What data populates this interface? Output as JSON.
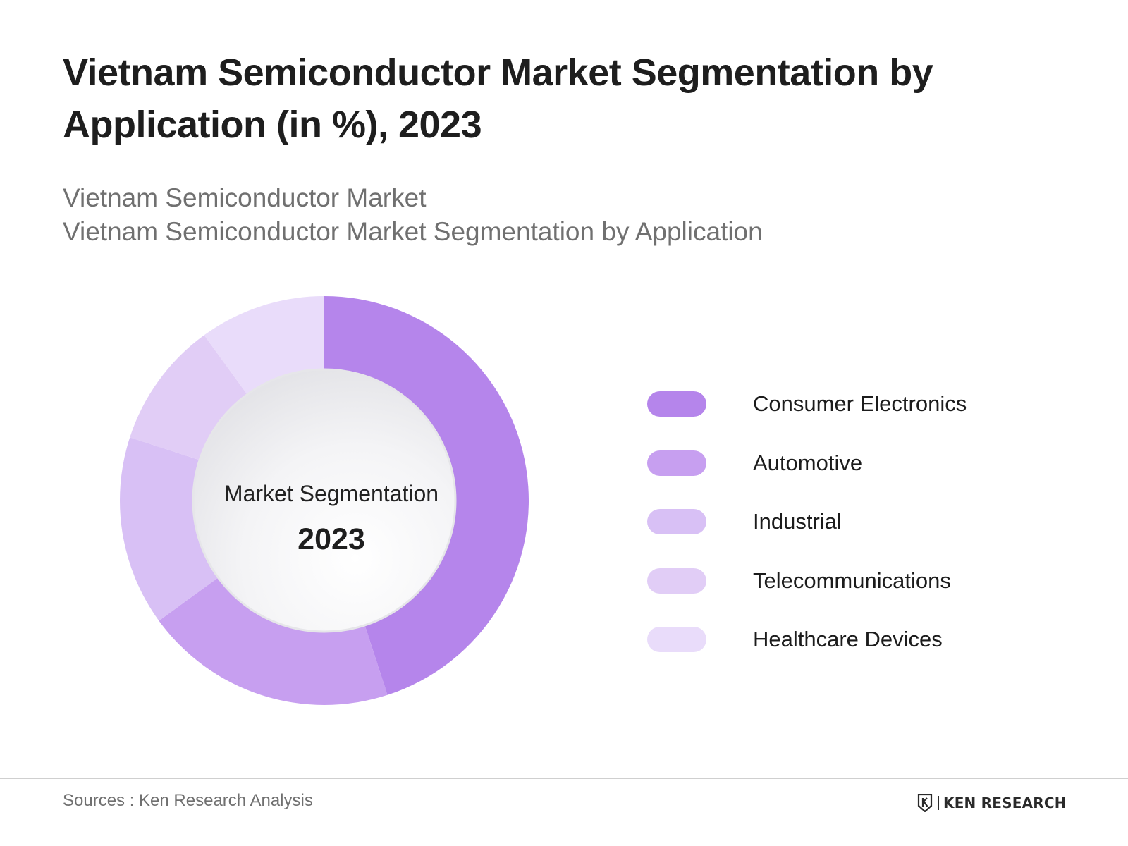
{
  "header": {
    "title": "Vietnam Semiconductor Market Segmentation by Application (in %), 2023",
    "subtitle_1": "Vietnam Semiconductor Market",
    "subtitle_2": "Vietnam Semiconductor Market Segmentation by Application"
  },
  "chart_data": {
    "type": "pie",
    "variant": "donut",
    "title": "Vietnam Semiconductor Market Segmentation by Application (in %), 2023",
    "center_label": "Market Segmentation",
    "center_value": "2023",
    "unit": "%",
    "categories": [
      "Consumer Electronics",
      "Automotive",
      "Industrial",
      "Telecommunications",
      "Healthcare Devices"
    ],
    "values": [
      45,
      20,
      15,
      10,
      10
    ],
    "colors": [
      "#b585eb",
      "#c79ff0",
      "#d8c0f5",
      "#e1cdf6",
      "#e9dcfa"
    ],
    "legend_position": "right"
  },
  "legend": {
    "items": [
      {
        "label": "Consumer Electronics",
        "color": "#b585eb"
      },
      {
        "label": "Automotive",
        "color": "#c79ff0"
      },
      {
        "label": "Industrial",
        "color": "#d8c0f5"
      },
      {
        "label": "Telecommunications",
        "color": "#e1cdf6"
      },
      {
        "label": "Healthcare Devices",
        "color": "#e9dcfa"
      }
    ]
  },
  "footer": {
    "source": "Sources : Ken Research Analysis",
    "brand": "KEN RESEARCH"
  }
}
